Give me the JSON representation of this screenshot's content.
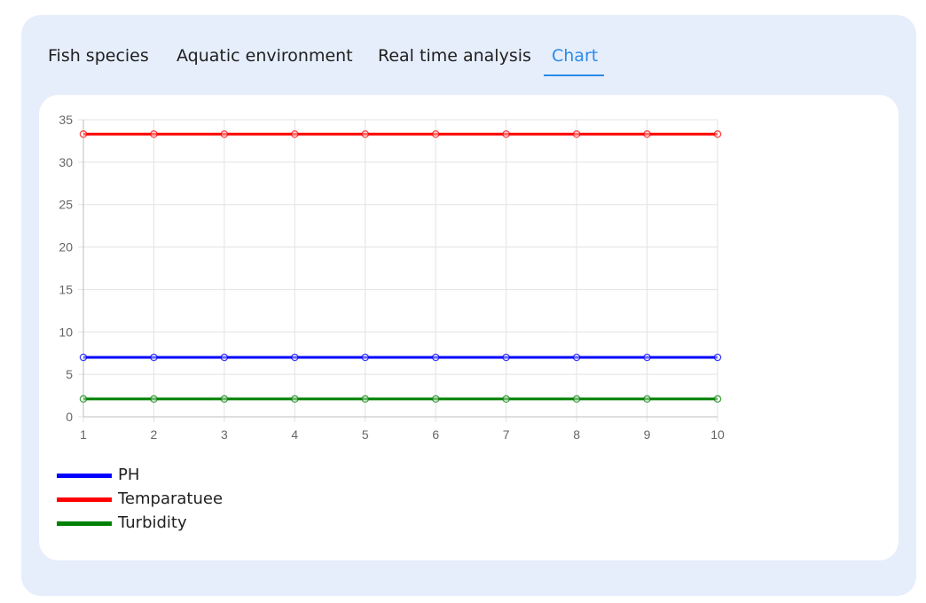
{
  "tabs": [
    {
      "label": "Fish species",
      "active": false
    },
    {
      "label": "Aquatic environment",
      "active": false
    },
    {
      "label": "Real time analysis",
      "active": false
    },
    {
      "label": "Chart",
      "active": true
    }
  ],
  "colors": {
    "accent": "#2b8ae8",
    "panel_bg": "#e6eefc"
  },
  "chart_data": {
    "type": "line",
    "title": "",
    "xlabel": "",
    "ylabel": "",
    "x": [
      1,
      2,
      3,
      4,
      5,
      6,
      7,
      8,
      9,
      10
    ],
    "ylim": [
      0,
      35
    ],
    "y_ticks": [
      0,
      5,
      10,
      15,
      20,
      25,
      30,
      35
    ],
    "grid": true,
    "legend_position": "bottom-left",
    "series": [
      {
        "name": "PH",
        "color": "#0000ff",
        "values": [
          7,
          7,
          7,
          7,
          7,
          7,
          7,
          7,
          7,
          7
        ]
      },
      {
        "name": "Temparatuee",
        "color": "#ff0000",
        "values": [
          33.3,
          33.3,
          33.3,
          33.3,
          33.3,
          33.3,
          33.3,
          33.3,
          33.3,
          33.3
        ]
      },
      {
        "name": "Turbidity",
        "color": "#008000",
        "values": [
          2.1,
          2.1,
          2.1,
          2.1,
          2.1,
          2.1,
          2.1,
          2.1,
          2.1,
          2.1
        ]
      }
    ]
  }
}
